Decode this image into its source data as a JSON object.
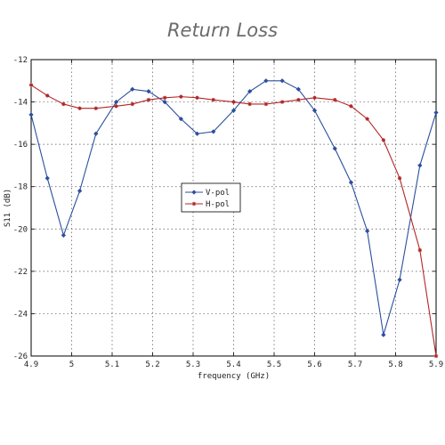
{
  "chart_data": {
    "type": "line",
    "title": "Return Loss",
    "xlabel": "frequency (GHz)",
    "ylabel": "S11 (dB)",
    "xlim": [
      4.9,
      5.9
    ],
    "ylim": [
      -26,
      -12
    ],
    "xticks": [
      4.9,
      5.0,
      5.1,
      5.2,
      5.3,
      5.4,
      5.5,
      5.6,
      5.7,
      5.8,
      5.9
    ],
    "xtick_labels": [
      "4.9",
      "5",
      "5.1",
      "5.2",
      "5.3",
      "5.4",
      "5.5",
      "5.6",
      "5.7",
      "5.8",
      "5.9"
    ],
    "yticks": [
      -12,
      -14,
      -16,
      -18,
      -20,
      -22,
      -24,
      -26
    ],
    "ytick_labels": [
      "-12",
      "-14",
      "-16",
      "-18",
      "-20",
      "-22",
      "-24",
      "-26"
    ],
    "grid": true,
    "legend_position": "center-left",
    "series": [
      {
        "name": "V-pol",
        "color": "#2c4f9e",
        "marker": "diamond",
        "x": [
          4.9,
          4.94,
          4.98,
          5.02,
          5.06,
          5.11,
          5.15,
          5.19,
          5.23,
          5.27,
          5.31,
          5.35,
          5.4,
          5.44,
          5.48,
          5.52,
          5.56,
          5.6,
          5.65,
          5.69,
          5.73,
          5.77,
          5.81,
          5.86,
          5.9
        ],
        "y": [
          -14.6,
          -17.6,
          -20.3,
          -18.2,
          -15.5,
          -14.0,
          -13.4,
          -13.5,
          -14.0,
          -14.8,
          -15.5,
          -15.4,
          -14.4,
          -13.5,
          -13.0,
          -13.0,
          -13.4,
          -14.4,
          -16.2,
          -17.8,
          -20.1,
          -25.0,
          -22.4,
          -17.0,
          -14.5
        ]
      },
      {
        "name": "H-pol",
        "color": "#b22626",
        "marker": "star",
        "x": [
          4.9,
          4.94,
          4.98,
          5.02,
          5.06,
          5.11,
          5.15,
          5.19,
          5.23,
          5.27,
          5.31,
          5.35,
          5.4,
          5.44,
          5.48,
          5.52,
          5.56,
          5.6,
          5.65,
          5.69,
          5.73,
          5.77,
          5.81,
          5.86,
          5.9
        ],
        "y": [
          -13.2,
          -13.7,
          -14.1,
          -14.3,
          -14.3,
          -14.2,
          -14.1,
          -13.9,
          -13.8,
          -13.75,
          -13.8,
          -13.9,
          -14.0,
          -14.1,
          -14.1,
          -14.0,
          -13.9,
          -13.8,
          -13.9,
          -14.2,
          -14.8,
          -15.8,
          -17.6,
          -21.0,
          -26.0
        ]
      }
    ]
  }
}
